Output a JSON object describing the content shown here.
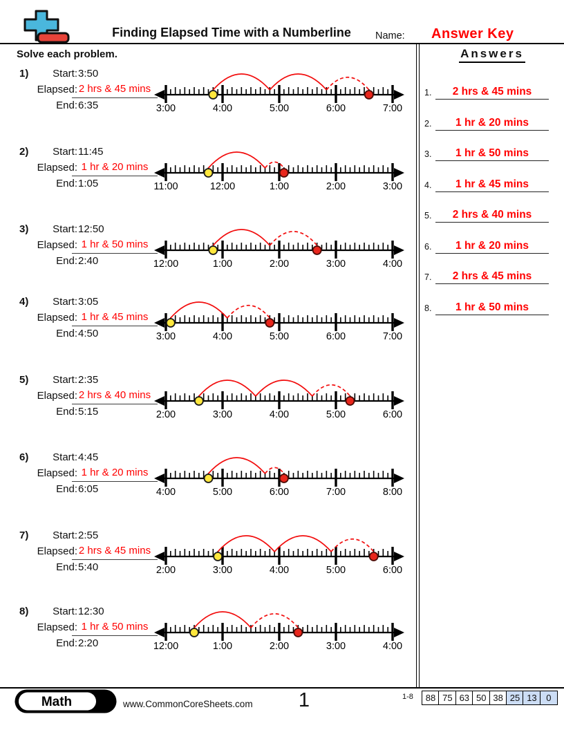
{
  "header": {
    "title": "Finding Elapsed Time with a Numberline",
    "name_label": "Name:",
    "name_value": "Answer Key",
    "instructions": "Solve each problem."
  },
  "problem_labels": {
    "start": "Start:",
    "elapsed": "Elapsed:",
    "end": "End:"
  },
  "problems": [
    {
      "num": "1)",
      "start": "3:50",
      "elapsed": "2 hrs & 45 mins",
      "end": "6:35",
      "axis_labels": [
        "3:00",
        "4:00",
        "5:00",
        "6:00",
        "7:00"
      ]
    },
    {
      "num": "2)",
      "start": "11:45",
      "elapsed": "1 hr & 20 mins",
      "end": "1:05",
      "axis_labels": [
        "11:00",
        "12:00",
        "1:00",
        "2:00",
        "3:00"
      ]
    },
    {
      "num": "3)",
      "start": "12:50",
      "elapsed": "1 hr & 50 mins",
      "end": "2:40",
      "axis_labels": [
        "12:00",
        "1:00",
        "2:00",
        "3:00",
        "4:00"
      ]
    },
    {
      "num": "4)",
      "start": "3:05",
      "elapsed": "1 hr & 45 mins",
      "end": "4:50",
      "axis_labels": [
        "3:00",
        "4:00",
        "5:00",
        "6:00",
        "7:00"
      ]
    },
    {
      "num": "5)",
      "start": "2:35",
      "elapsed": "2 hrs & 40 mins",
      "end": "5:15",
      "axis_labels": [
        "2:00",
        "3:00",
        "4:00",
        "5:00",
        "6:00"
      ]
    },
    {
      "num": "6)",
      "start": "4:45",
      "elapsed": "1 hr & 20 mins",
      "end": "6:05",
      "axis_labels": [
        "4:00",
        "5:00",
        "6:00",
        "7:00",
        "8:00"
      ]
    },
    {
      "num": "7)",
      "start": "2:55",
      "elapsed": "2 hrs & 45 mins",
      "end": "5:40",
      "axis_labels": [
        "2:00",
        "3:00",
        "4:00",
        "5:00",
        "6:00"
      ]
    },
    {
      "num": "8)",
      "start": "12:30",
      "elapsed": "1 hr & 50 mins",
      "end": "2:20",
      "axis_labels": [
        "12:00",
        "1:00",
        "2:00",
        "3:00",
        "4:00"
      ]
    }
  ],
  "answers_panel": {
    "title": "Answers",
    "items": [
      {
        "num": "1.",
        "text": "2 hrs & 45 mins"
      },
      {
        "num": "2.",
        "text": "1 hr & 20 mins"
      },
      {
        "num": "3.",
        "text": "1 hr & 50 mins"
      },
      {
        "num": "4.",
        "text": "1 hr & 45 mins"
      },
      {
        "num": "5.",
        "text": "2 hrs & 40 mins"
      },
      {
        "num": "6.",
        "text": "1 hr & 20 mins"
      },
      {
        "num": "7.",
        "text": "2 hrs & 45 mins"
      },
      {
        "num": "8.",
        "text": "1 hr & 50 mins"
      }
    ]
  },
  "footer": {
    "brand": "Math",
    "website": "www.CommonCoreSheets.com",
    "page_number": "1",
    "score_range": "1-8",
    "scores": [
      "88",
      "75",
      "63",
      "50",
      "38",
      "25",
      "13",
      "0"
    ],
    "score_highlight_from": 5
  },
  "colors": {
    "answer_red": "#ff0000",
    "line_red": "#f20d0d",
    "dot_start_yellow": "#ffe73d",
    "dot_end_red": "#e8261c",
    "score_cell_blue": "#ccddf5",
    "logo_blue": "#4ab7dd",
    "logo_red": "#e8443a"
  }
}
